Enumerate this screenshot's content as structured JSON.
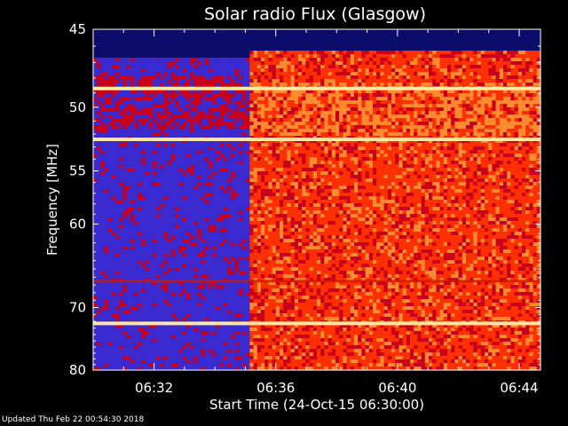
{
  "chart_data": {
    "type": "heatmap",
    "title": "Solar radio Flux (Glasgow)",
    "xlabel": "Start Time (24-Oct-15 06:30:00)",
    "ylabel": "Frequency [MHz]",
    "x_ticks": [
      "06:32",
      "06:36",
      "06:40",
      "06:44"
    ],
    "x_tick_minutes": [
      2,
      6,
      10,
      14
    ],
    "xlim_minutes": [
      0,
      14.7
    ],
    "y_ticks": [
      45,
      50,
      55,
      60,
      70,
      80
    ],
    "ylim_mhz": [
      45,
      80
    ],
    "y_scale": "reciprocal",
    "onset_minutes": 5.3,
    "colormap": [
      "#0c0c6a",
      "#3a2ad0",
      "#c8001c",
      "#ff3000",
      "#ff8a30",
      "#ffe9a0"
    ],
    "bright_bands_mhz": [
      48.7,
      52.4,
      72.3
    ],
    "dark_band_mhz": 66.5
  },
  "footer": "Updated Thu Feb 22 00:54:30 2018",
  "colors": {
    "background": "#000000",
    "text": "#ffffff"
  }
}
